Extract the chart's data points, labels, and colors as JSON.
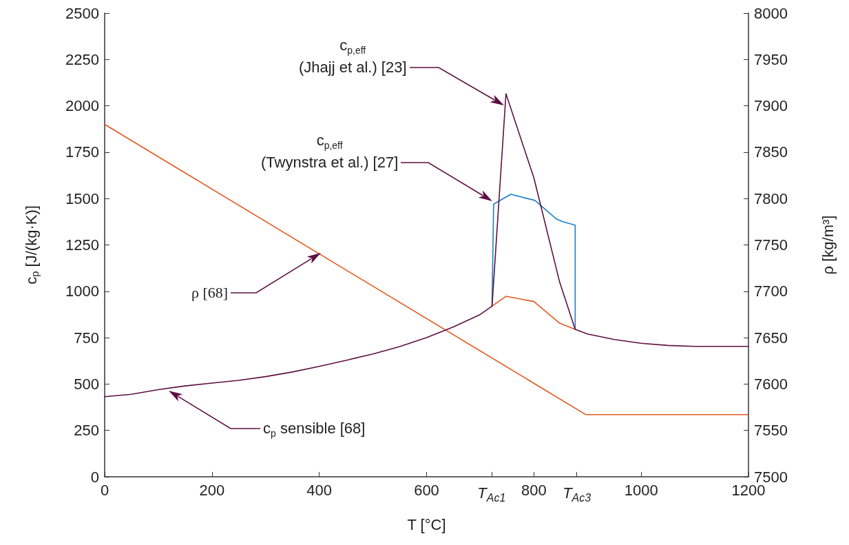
{
  "chart_data": {
    "type": "line",
    "xlabel": "T [°C]",
    "ylabel": "c$_{p}$ [J/(kg·K)]",
    "y2label": "ρ [kg/m³]",
    "xlim": [
      0,
      1200
    ],
    "xticks": [
      0,
      200,
      400,
      600,
      {
        "value": 721,
        "label": "T$_{Ac1}$"
      },
      800,
      {
        "value": 880,
        "label": "T$_{Ac3}$"
      },
      1000,
      1200
    ],
    "ylim": [
      0,
      2500
    ],
    "yticks": [
      0,
      250,
      500,
      750,
      1000,
      1250,
      1500,
      1750,
      2000,
      2250,
      2500
    ],
    "y2lim": [
      7500,
      8000
    ],
    "y2ticks": [
      7500,
      7550,
      7600,
      7650,
      7700,
      7750,
      7800,
      7850,
      7900,
      7950,
      8000
    ],
    "grid": false,
    "marker": "none",
    "line_style": "solid",
    "series": [
      {
        "color": "#e3571c",
        "axis": "y2",
        "x": [
          0,
          897,
          1200
        ],
        "values": [
          7880,
          7567,
          7567
        ]
      },
      {
        "color": "#e3571c",
        "x": [
          722,
          748,
          800,
          848,
          877
        ],
        "values": [
          920,
          973,
          945,
          828,
          795
        ]
      },
      {
        "color": "#1a7fc8",
        "x": [
          722,
          725,
          757,
          802,
          842,
          854,
          877,
          877
        ],
        "values": [
          920,
          1470,
          1523,
          1490,
          1390,
          1375,
          1357,
          795
        ]
      },
      {
        "color": "#5c0f42",
        "x": [
          0,
          50,
          100,
          150,
          200,
          250,
          300,
          350,
          400,
          450,
          500,
          550,
          600,
          650,
          700,
          722,
          748,
          800,
          848,
          877,
          900,
          950,
          1000,
          1050,
          1100,
          1200
        ],
        "values": [
          432,
          445,
          470,
          490,
          505,
          520,
          540,
          565,
          595,
          628,
          662,
          702,
          750,
          808,
          875,
          920,
          2065,
          1612,
          1050,
          795,
          770,
          740,
          720,
          708,
          703,
          703
        ]
      }
    ],
    "annotations": [
      "c$_{p,eff}$\n(Jhajj et al.) [23]",
      "c$_{p,eff}$\n(Twynstra et al.) [27]",
      "ρ [68]",
      "c$_{p}$ sensible [68]"
    ]
  }
}
